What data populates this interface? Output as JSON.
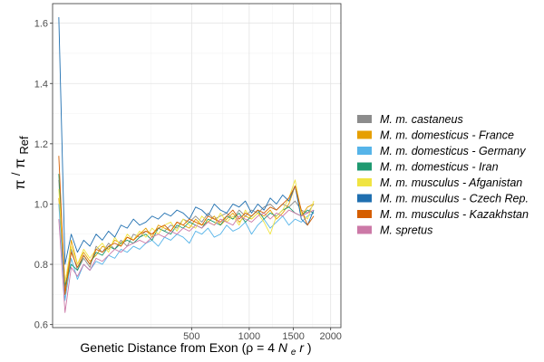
{
  "chart_data": {
    "type": "line",
    "xlabel": "Genetic Distance from Exon (ρ = 4Ner)",
    "xlabel_parts": {
      "prefix": "Genetic Distance from Exon (ρ = 4",
      "n": "N",
      "e": "e",
      "r": "r",
      "suffix": ")"
    },
    "ylabel_parts": {
      "pi": "π",
      "slash": "/",
      "pi2": "π",
      "sub": "Ref"
    },
    "x_scale": "sqrt",
    "xlim": [
      0,
      2150
    ],
    "ylim": [
      0.59,
      1.665
    ],
    "x_ticks": [
      500,
      1000,
      1500,
      2000
    ],
    "x_tick_labels": [
      "500",
      "1000",
      "1500",
      "2000"
    ],
    "y_ticks": [
      0.6,
      0.8,
      1.0,
      1.2,
      1.4,
      1.6
    ],
    "y_tick_labels": [
      "0.6",
      "0.8",
      "1.0",
      "1.2",
      "1.4",
      "1.6"
    ],
    "grid": true,
    "legend_position": "right",
    "x": [
      1,
      4,
      9,
      16,
      25,
      36,
      49,
      64,
      81,
      100,
      121,
      144,
      169,
      196,
      225,
      256,
      289,
      324,
      361,
      400,
      441,
      484,
      529,
      576,
      625,
      676,
      729,
      784,
      841,
      900,
      961,
      1024,
      1089,
      1156,
      1225,
      1296,
      1369,
      1444,
      1521,
      1600,
      1681,
      1764
    ],
    "series": [
      {
        "name": "M. m. castaneus",
        "color": "#8c8c8c",
        "values": [
          1.08,
          0.72,
          0.85,
          0.78,
          0.82,
          0.79,
          0.86,
          0.84,
          0.87,
          0.85,
          0.88,
          0.86,
          0.9,
          0.89,
          0.91,
          0.9,
          0.92,
          0.91,
          0.93,
          0.92,
          0.95,
          0.94,
          0.96,
          0.94,
          0.97,
          0.95,
          0.96,
          0.97,
          0.95,
          0.98,
          0.96,
          0.98,
          0.97,
          0.99,
          1.0,
          0.98,
          1.0,
          0.99,
          1.01,
          0.98,
          0.97,
          1.0
        ]
      },
      {
        "name": "M. m. domesticus - France",
        "color": "#e69f00",
        "values": [
          1.02,
          0.7,
          0.88,
          0.8,
          0.84,
          0.81,
          0.83,
          0.86,
          0.85,
          0.88,
          0.87,
          0.89,
          0.88,
          0.9,
          0.92,
          0.89,
          0.93,
          0.92,
          0.91,
          0.94,
          0.93,
          0.92,
          0.95,
          0.93,
          0.94,
          0.96,
          0.93,
          0.95,
          0.97,
          0.94,
          0.96,
          0.95,
          0.97,
          0.96,
          0.98,
          0.95,
          0.97,
          1.0,
          1.06,
          0.96,
          0.99,
          1.0
        ]
      },
      {
        "name": "M. m. domesticus - Germany",
        "color": "#56b4e9",
        "values": [
          1.0,
          0.68,
          0.82,
          0.75,
          0.8,
          0.78,
          0.81,
          0.8,
          0.83,
          0.82,
          0.85,
          0.84,
          0.86,
          0.85,
          0.87,
          0.88,
          0.86,
          0.89,
          0.88,
          0.9,
          0.89,
          0.87,
          0.91,
          0.9,
          0.92,
          0.89,
          0.9,
          0.93,
          0.91,
          0.92,
          0.94,
          0.9,
          0.93,
          0.95,
          0.92,
          0.94,
          0.96,
          0.93,
          0.95,
          0.94,
          0.96,
          0.97
        ]
      },
      {
        "name": "M. m. domesticus - Iran",
        "color": "#1f9970",
        "values": [
          1.1,
          0.73,
          0.8,
          0.78,
          0.83,
          0.8,
          0.84,
          0.83,
          0.86,
          0.85,
          0.87,
          0.88,
          0.87,
          0.89,
          0.9,
          0.88,
          0.92,
          0.91,
          0.9,
          0.93,
          0.92,
          0.94,
          0.93,
          0.92,
          0.95,
          0.94,
          0.93,
          0.96,
          0.95,
          0.97,
          0.94,
          0.96,
          0.98,
          0.95,
          0.97,
          0.96,
          0.98,
          0.99,
          0.97,
          0.96,
          0.98,
          0.97
        ]
      },
      {
        "name": "M. m. musculus - Afganistan",
        "color": "#f0e442",
        "values": [
          1.05,
          0.74,
          0.86,
          0.8,
          0.85,
          0.82,
          0.85,
          0.87,
          0.84,
          0.89,
          0.86,
          0.9,
          0.88,
          0.91,
          0.89,
          0.92,
          0.9,
          0.93,
          0.94,
          0.91,
          0.95,
          0.93,
          0.92,
          0.96,
          0.94,
          0.93,
          0.97,
          0.94,
          0.96,
          0.93,
          0.98,
          0.95,
          0.97,
          0.94,
          0.9,
          0.96,
          0.98,
          1.02,
          1.08,
          0.97,
          0.95,
          1.01
        ]
      },
      {
        "name": "M. m. musculus - Czech Rep.",
        "color": "#1f6fb0",
        "values": [
          1.62,
          0.8,
          0.9,
          0.84,
          0.88,
          0.86,
          0.9,
          0.88,
          0.91,
          0.89,
          0.93,
          0.92,
          0.95,
          0.93,
          0.94,
          0.96,
          0.95,
          0.97,
          0.96,
          0.98,
          0.97,
          0.95,
          0.99,
          0.98,
          0.96,
          1.0,
          0.98,
          0.97,
          1.0,
          0.99,
          1.01,
          0.97,
          1.0,
          0.98,
          1.02,
          1.0,
          1.03,
          1.01,
          1.06,
          0.95,
          0.93,
          0.98
        ]
      },
      {
        "name": "M. m. musculus - Kazakhstan",
        "color": "#d55e00",
        "values": [
          1.16,
          0.7,
          0.84,
          0.79,
          0.83,
          0.8,
          0.85,
          0.84,
          0.86,
          0.87,
          0.86,
          0.89,
          0.88,
          0.9,
          0.91,
          0.9,
          0.92,
          0.93,
          0.91,
          0.94,
          0.93,
          0.95,
          0.94,
          0.93,
          0.96,
          0.95,
          0.94,
          0.96,
          0.98,
          0.95,
          0.97,
          0.96,
          0.98,
          0.97,
          0.99,
          0.98,
          1.0,
          1.02,
          1.06,
          0.98,
          0.93,
          0.96
        ]
      },
      {
        "name": "M. spretus",
        "color": "#cc79a7",
        "values": [
          0.95,
          0.64,
          0.79,
          0.76,
          0.8,
          0.78,
          0.82,
          0.81,
          0.83,
          0.85,
          0.84,
          0.86,
          0.87,
          0.88,
          0.87,
          0.89,
          0.9,
          0.89,
          0.91,
          0.9,
          0.92,
          0.91,
          0.93,
          0.92,
          0.94,
          0.93,
          0.95,
          0.94,
          0.93,
          0.96,
          0.95,
          0.94,
          0.96,
          0.97,
          0.95,
          0.97,
          0.96,
          0.98,
          0.97,
          0.96,
          0.97,
          0.98
        ]
      }
    ]
  }
}
